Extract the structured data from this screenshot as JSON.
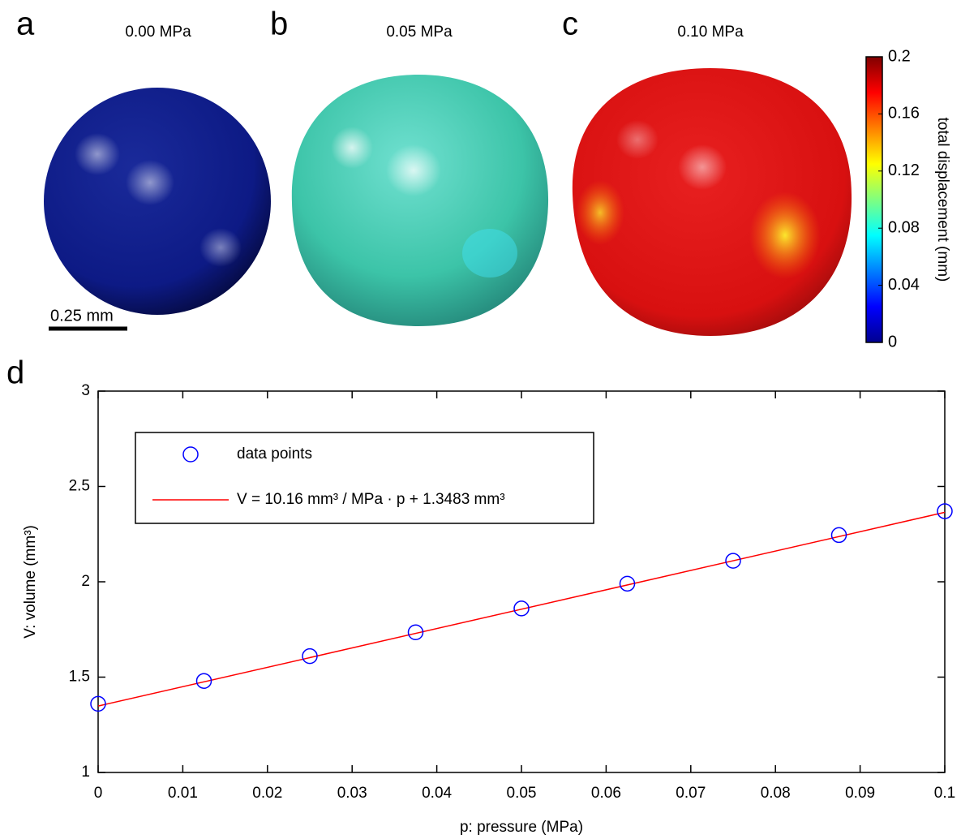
{
  "panels": [
    {
      "letter": "a",
      "title": "0.00 MPa"
    },
    {
      "letter": "b",
      "title": "0.05 MPa"
    },
    {
      "letter": "c",
      "title": "0.10 MPa"
    },
    {
      "letter": "d"
    }
  ],
  "scale_bar": "0.25 mm",
  "colorbar": {
    "label": "total displacement (mm)",
    "lim": [
      0,
      0.2
    ],
    "ticks": [
      0,
      0.04,
      0.08,
      0.12,
      0.16,
      0.2
    ]
  },
  "chart_data": {
    "type": "scatter",
    "x_label": "p: pressure (MPa)",
    "y_label": "V: volume (mm³)",
    "xlim": [
      0,
      0.1
    ],
    "xticks": [
      0,
      0.01,
      0.02,
      0.03,
      0.04,
      0.05,
      0.06,
      0.07,
      0.08,
      0.09,
      0.1
    ],
    "ylim": [
      1,
      3
    ],
    "yticks": [
      1,
      1.5,
      2,
      2.5,
      3
    ],
    "series": [
      {
        "name": "data points",
        "type": "scatter",
        "color": "#0000ff",
        "x": [
          0,
          0.0125,
          0.025,
          0.0375,
          0.05,
          0.0625,
          0.075,
          0.0875,
          0.1
        ],
        "values": [
          1.36,
          1.48,
          1.61,
          1.735,
          1.86,
          1.99,
          2.11,
          2.245,
          2.37
        ]
      },
      {
        "name": "V = 10.16 mm³ / MPa · p + 1.3483 mm³",
        "type": "line",
        "color": "#ff0000",
        "x": [
          0,
          0.1
        ],
        "values": [
          1.3483,
          2.3643
        ]
      }
    ]
  }
}
